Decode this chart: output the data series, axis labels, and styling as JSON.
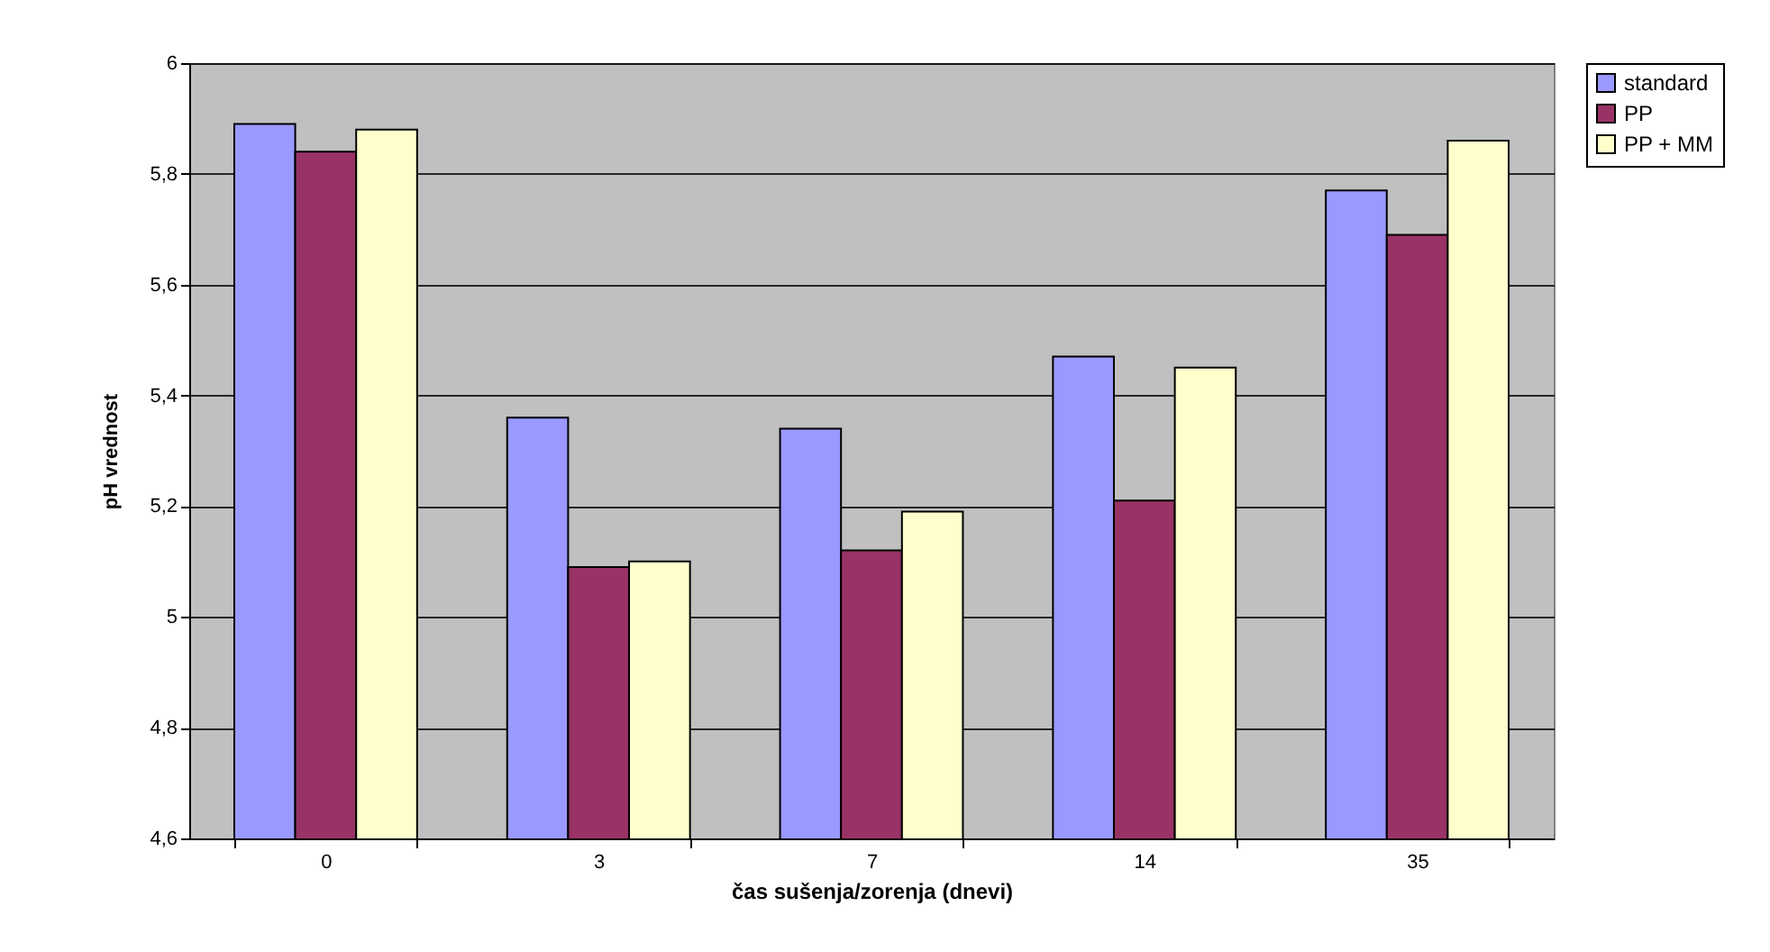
{
  "chart_data": {
    "type": "bar",
    "xlabel": "čas sušenja/zorenja (dnevi)",
    "ylabel": "pH vrednost",
    "categories": [
      "0",
      "3",
      "7",
      "14",
      "35"
    ],
    "series": [
      {
        "name": "standard",
        "color": "#9999ff",
        "values": [
          5.89,
          5.36,
          5.34,
          5.47,
          5.77
        ]
      },
      {
        "name": "PP",
        "color": "#993366",
        "values": [
          5.84,
          5.09,
          5.12,
          5.21,
          5.69
        ]
      },
      {
        "name": "PP + MM",
        "color": "#ffffcc",
        "values": [
          5.88,
          5.1,
          5.19,
          5.45,
          5.86
        ]
      }
    ],
    "ylim": [
      4.6,
      6
    ],
    "yticks": [
      {
        "value": 4.6,
        "label": "4,6"
      },
      {
        "value": 4.8,
        "label": "4,8"
      },
      5,
      {
        "value": 5.2,
        "label": "5,2"
      },
      {
        "value": 5.4,
        "label": "5,4"
      },
      {
        "value": 5.6,
        "label": "5,6"
      },
      {
        "value": 5.8,
        "label": "5,8"
      },
      6
    ],
    "grid": "y",
    "legend": "right"
  }
}
